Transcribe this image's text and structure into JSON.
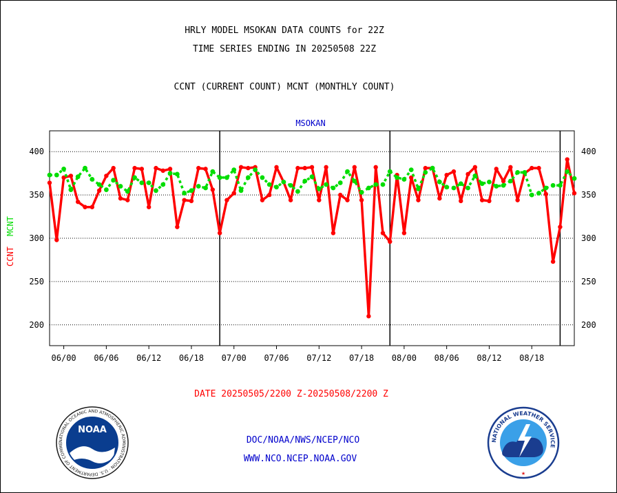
{
  "header": {
    "title_line1": "HRLY MODEL MSOKAN DATA COUNTS for 22Z",
    "title_line2": "TIME SERIES ENDING IN 20250508 22Z",
    "subtitle": "CCNT (CURRENT COUNT) MCNT (MONTHLY COUNT)",
    "station": "MSOKAN"
  },
  "footer": {
    "date_range": "DATE 20250505/2200 Z-20250508/2200 Z",
    "org_path": "DOC/NOAA/NWS/NCEP/NCO",
    "website": "WWW.NCO.NCEP.NOAA.GOV"
  },
  "logos": {
    "noaa_text": "NOAA",
    "noaa_ring": "NATIONAL OCEANIC AND ATMOSPHERIC ADMINISTRATION · U.S. DEPARTMENT OF COMMERCE ·",
    "nws_ring": "NATIONAL WEATHER SERVICE"
  },
  "colors": {
    "ccnt": "#ff0000",
    "mcnt": "#00dd00",
    "title": "#000000",
    "station": "#0000cc",
    "footer_date": "#ff0000",
    "footer_links": "#0000cc"
  },
  "chart_data": {
    "type": "line",
    "ylabel_ccnt": "CCNT",
    "ylabel_mcnt": "MCNT",
    "ylim": [
      176,
      424
    ],
    "yticks": [
      200,
      250,
      300,
      350,
      400
    ],
    "grid": "horizontal dotted",
    "x_tick_labels": [
      "06/00",
      "06/06",
      "06/12",
      "06/18",
      "07/00",
      "07/06",
      "07/12",
      "07/18",
      "08/00",
      "08/06",
      "08/12",
      "08/18"
    ],
    "day_boundaries": [
      "05/22",
      "06/22",
      "07/22"
    ],
    "x_start": "05/22",
    "x_end": "08/22",
    "series": [
      {
        "name": "CCNT",
        "values": [
          364,
          298,
          370,
          372,
          342,
          336,
          336,
          355,
          372,
          381,
          346,
          344,
          381,
          380,
          336,
          381,
          378,
          380,
          313,
          344,
          343,
          381,
          380,
          356,
          306,
          344,
          352,
          382,
          381,
          382,
          344,
          350,
          382,
          365,
          344,
          381,
          381,
          382,
          344,
          382,
          306,
          350,
          344,
          382,
          344,
          210,
          382,
          306,
          296,
          373,
          306,
          370,
          344,
          381,
          381,
          346,
          373,
          377,
          343,
          374,
          382,
          344,
          343,
          380,
          366,
          382,
          344,
          375,
          381,
          381,
          351,
          273,
          313,
          391,
          352
        ]
      },
      {
        "name": "MCNT",
        "values": [
          373,
          373,
          380,
          356,
          371,
          381,
          368,
          362,
          356,
          367,
          360,
          354,
          370,
          364,
          364,
          355,
          362,
          375,
          374,
          352,
          355,
          360,
          358,
          377,
          370,
          370,
          379,
          355,
          370,
          379,
          370,
          362,
          359,
          365,
          361,
          354,
          366,
          371,
          357,
          362,
          358,
          364,
          377,
          366,
          353,
          358,
          362,
          362,
          377,
          370,
          368,
          379,
          357,
          376,
          381,
          365,
          359,
          358,
          363,
          358,
          372,
          363,
          365,
          360,
          361,
          366,
          376,
          376,
          350,
          352,
          358,
          361,
          361,
          377,
          369
        ]
      }
    ]
  }
}
